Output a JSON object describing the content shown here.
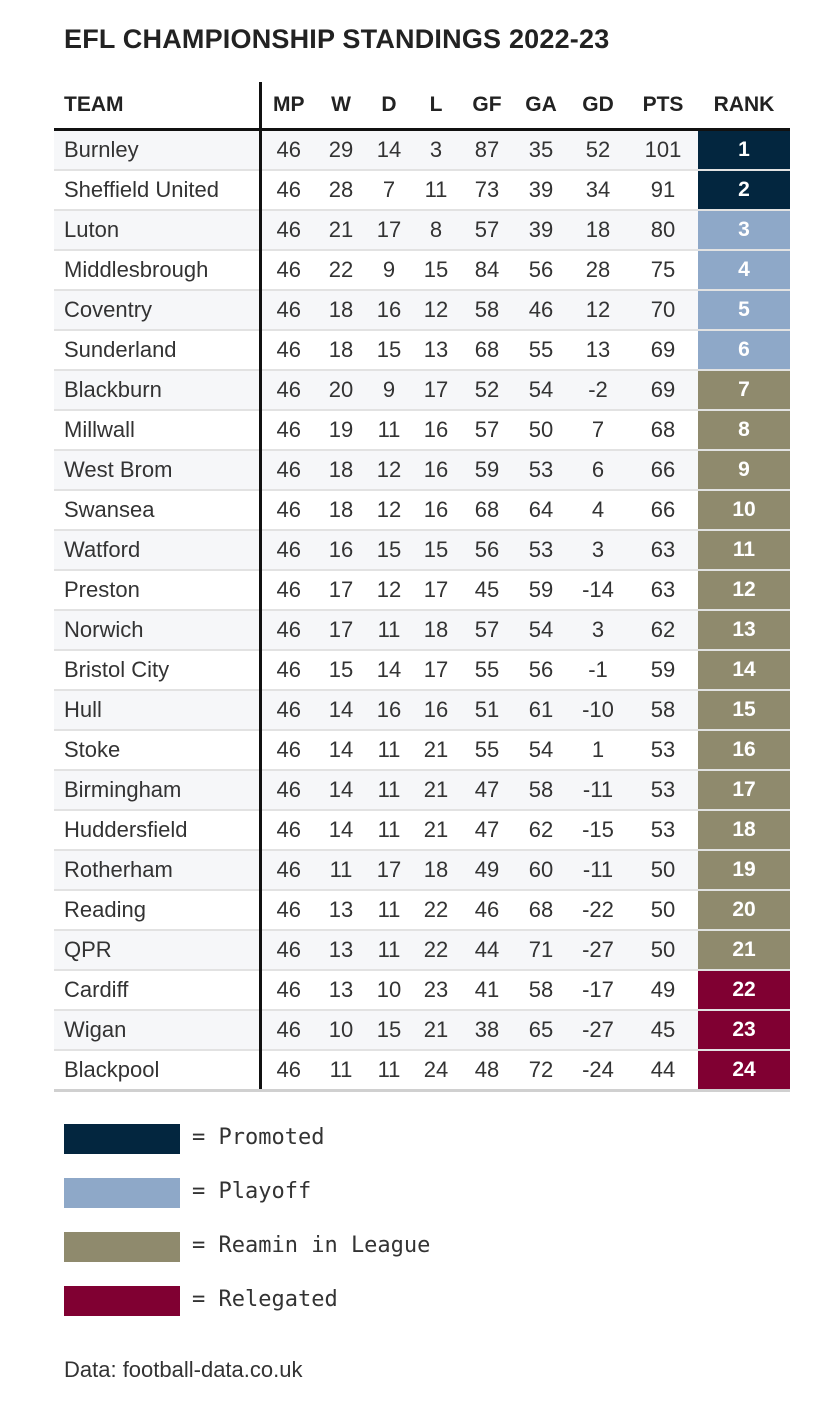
{
  "chart_data": {
    "type": "table",
    "title": "EFL CHAMPIONSHIP STANDINGS 2022-23",
    "columns": [
      "TEAM",
      "MP",
      "W",
      "D",
      "L",
      "GF",
      "GA",
      "GD",
      "PTS",
      "RANK"
    ],
    "rows": [
      [
        "Burnley",
        46,
        29,
        14,
        3,
        87,
        35,
        52,
        101,
        1
      ],
      [
        "Sheffield United",
        46,
        28,
        7,
        11,
        73,
        39,
        34,
        91,
        2
      ],
      [
        "Luton",
        46,
        21,
        17,
        8,
        57,
        39,
        18,
        80,
        3
      ],
      [
        "Middlesbrough",
        46,
        22,
        9,
        15,
        84,
        56,
        28,
        75,
        4
      ],
      [
        "Coventry",
        46,
        18,
        16,
        12,
        58,
        46,
        12,
        70,
        5
      ],
      [
        "Sunderland",
        46,
        18,
        15,
        13,
        68,
        55,
        13,
        69,
        6
      ],
      [
        "Blackburn",
        46,
        20,
        9,
        17,
        52,
        54,
        -2,
        69,
        7
      ],
      [
        "Millwall",
        46,
        19,
        11,
        16,
        57,
        50,
        7,
        68,
        8
      ],
      [
        "West Brom",
        46,
        18,
        12,
        16,
        59,
        53,
        6,
        66,
        9
      ],
      [
        "Swansea",
        46,
        18,
        12,
        16,
        68,
        64,
        4,
        66,
        10
      ],
      [
        "Watford",
        46,
        16,
        15,
        15,
        56,
        53,
        3,
        63,
        11
      ],
      [
        "Preston",
        46,
        17,
        12,
        17,
        45,
        59,
        -14,
        63,
        12
      ],
      [
        "Norwich",
        46,
        17,
        11,
        18,
        57,
        54,
        3,
        62,
        13
      ],
      [
        "Bristol City",
        46,
        15,
        14,
        17,
        55,
        56,
        -1,
        59,
        14
      ],
      [
        "Hull",
        46,
        14,
        16,
        16,
        51,
        61,
        -10,
        58,
        15
      ],
      [
        "Stoke",
        46,
        14,
        11,
        21,
        55,
        54,
        1,
        53,
        16
      ],
      [
        "Birmingham",
        46,
        14,
        11,
        21,
        47,
        58,
        -11,
        53,
        17
      ],
      [
        "Huddersfield",
        46,
        14,
        11,
        21,
        47,
        62,
        -15,
        53,
        18
      ],
      [
        "Rotherham",
        46,
        11,
        17,
        18,
        49,
        60,
        -11,
        50,
        19
      ],
      [
        "Reading",
        46,
        13,
        11,
        22,
        46,
        68,
        -22,
        50,
        20
      ],
      [
        "QPR",
        46,
        13,
        11,
        22,
        44,
        71,
        -27,
        50,
        21
      ],
      [
        "Cardiff",
        46,
        13,
        10,
        23,
        41,
        58,
        -17,
        49,
        22
      ],
      [
        "Wigan",
        46,
        10,
        15,
        21,
        38,
        65,
        -27,
        45,
        23
      ],
      [
        "Blackpool",
        46,
        11,
        11,
        24,
        48,
        72,
        -24,
        44,
        24
      ]
    ],
    "rank_status": [
      "promoted",
      "promoted",
      "playoff",
      "playoff",
      "playoff",
      "playoff",
      "remain",
      "remain",
      "remain",
      "remain",
      "remain",
      "remain",
      "remain",
      "remain",
      "remain",
      "remain",
      "remain",
      "remain",
      "remain",
      "remain",
      "remain",
      "relegated",
      "relegated",
      "relegated"
    ],
    "legend": [
      {
        "key": "promoted",
        "label": "= Promoted",
        "color": "#03263f"
      },
      {
        "key": "playoff",
        "label": "= Playoff",
        "color": "#8ea8c8"
      },
      {
        "key": "remain",
        "label": "= Reamin in League",
        "color": "#8f8a6d"
      },
      {
        "key": "relegated",
        "label": "= Relegated",
        "color": "#800032"
      }
    ],
    "source": "Data: football-data.co.uk"
  }
}
